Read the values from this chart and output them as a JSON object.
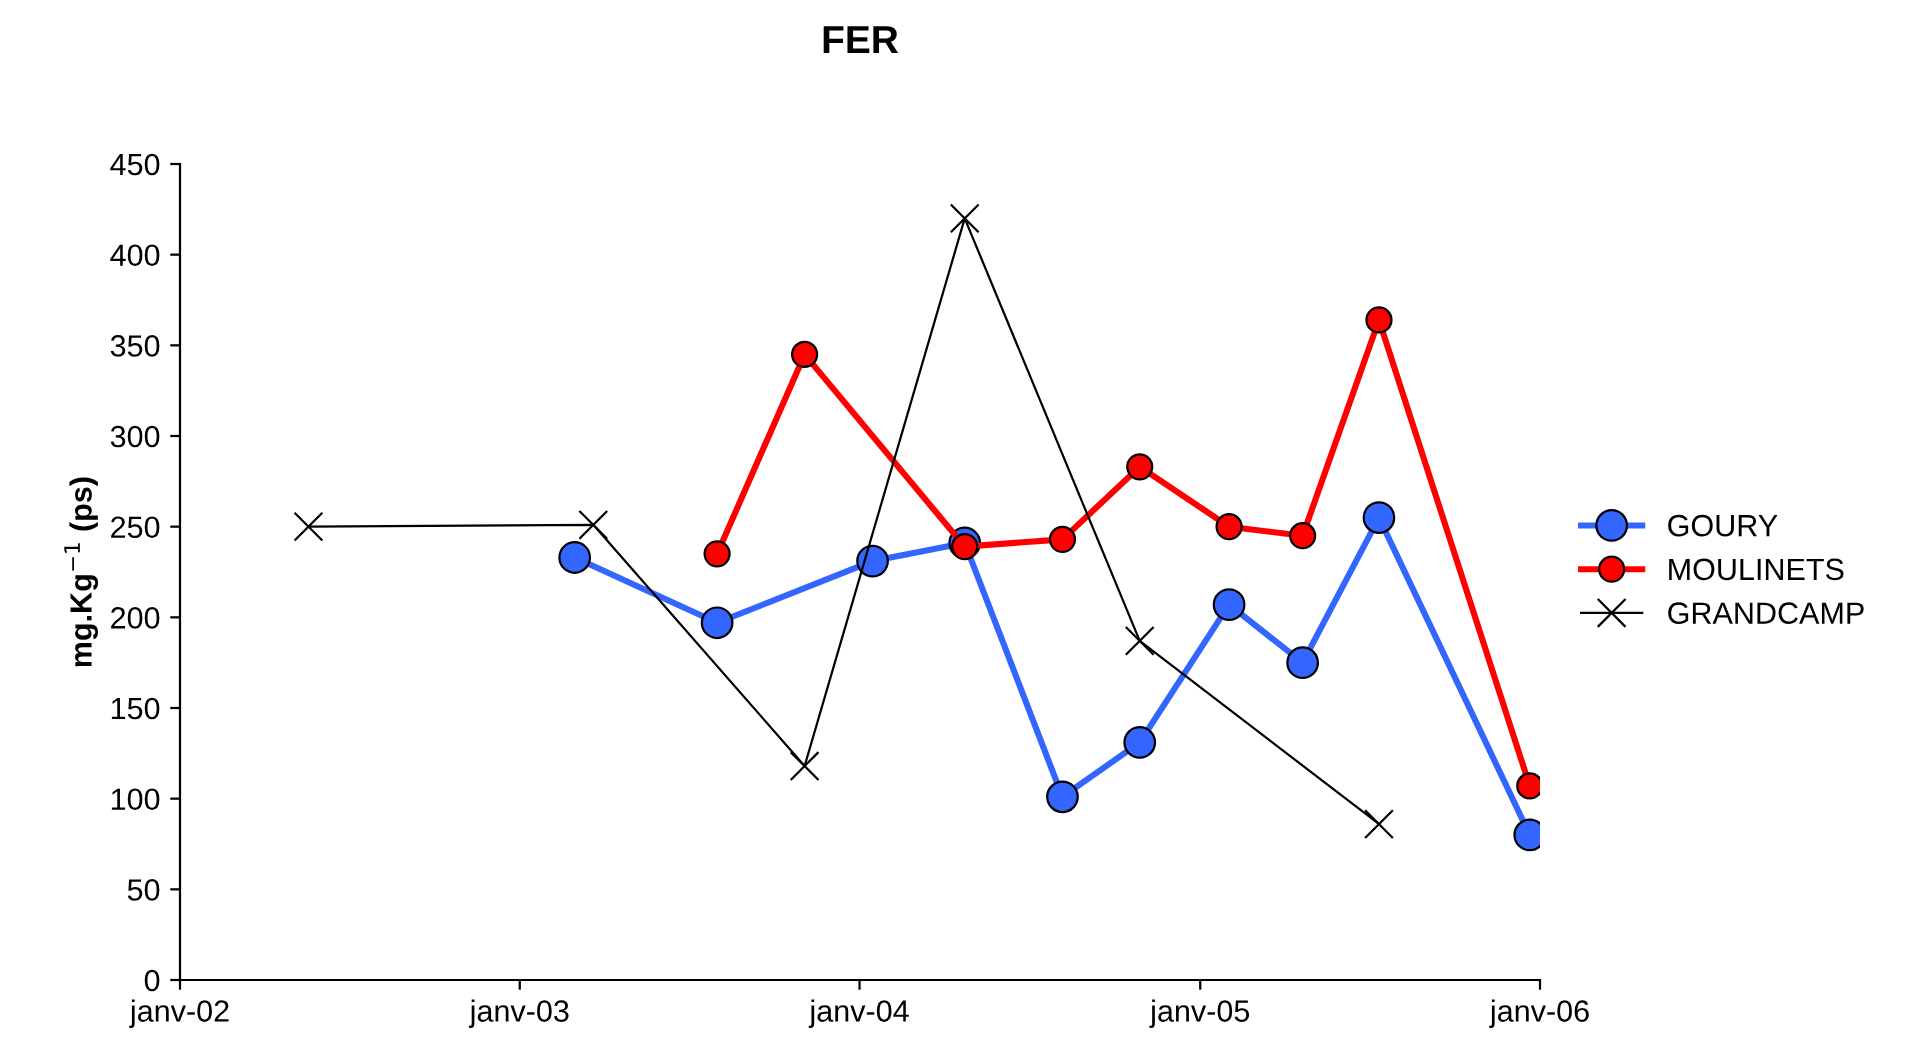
{
  "chart_data": {
    "type": "line",
    "title": "FER",
    "ylabel": "mg.Kg$^{−1}$ (ps)",
    "xlim": [
      "2002-01-01",
      "2006-01-01"
    ],
    "xticks": [
      {
        "value": "2002-01-01",
        "label": "janv-02"
      },
      {
        "value": "2003-01-01",
        "label": "janv-03"
      },
      {
        "value": "2004-01-01",
        "label": "janv-04"
      },
      {
        "value": "2005-01-01",
        "label": "janv-05"
      },
      {
        "value": "2006-01-01",
        "label": "janv-06"
      }
    ],
    "ylim": [
      0,
      450
    ],
    "yticks": [
      0,
      50,
      100,
      150,
      200,
      250,
      300,
      350,
      400,
      450
    ],
    "grid": false,
    "legend": "right",
    "series": [
      {
        "name": "GOURY",
        "color": "#3366ff",
        "marker": "circle",
        "line_style": "solid",
        "x": [
          "2003-03-01",
          "2003-08-01",
          "2004-01-15",
          "2004-04-23",
          "2004-08-06",
          "2004-10-28",
          "2005-02-01",
          "2005-04-21",
          "2005-07-12",
          "2005-12-21"
        ],
        "values": [
          233,
          197,
          231,
          241,
          101,
          131,
          207,
          175,
          255,
          80
        ]
      },
      {
        "name": "MOULINETS",
        "color": "#ff0000",
        "marker": "circle",
        "line_style": "solid",
        "x": [
          "2003-08-01",
          "2003-11-03",
          "2004-04-23",
          "2004-08-06",
          "2004-10-28",
          "2005-02-01",
          "2005-04-21",
          "2005-07-12",
          "2005-12-21"
        ],
        "values": [
          235,
          345,
          239,
          243,
          283,
          250,
          245,
          364,
          107
        ]
      },
      {
        "name": "GRANDCAMP",
        "color": "#000000",
        "marker": "cross",
        "line_style": "solid",
        "x": [
          "2002-05-19",
          "2003-03-21",
          "2003-11-03",
          "2004-04-23",
          "2004-10-28",
          "2005-07-12"
        ],
        "values": [
          250,
          251,
          118,
          420,
          187,
          86
        ]
      }
    ]
  }
}
